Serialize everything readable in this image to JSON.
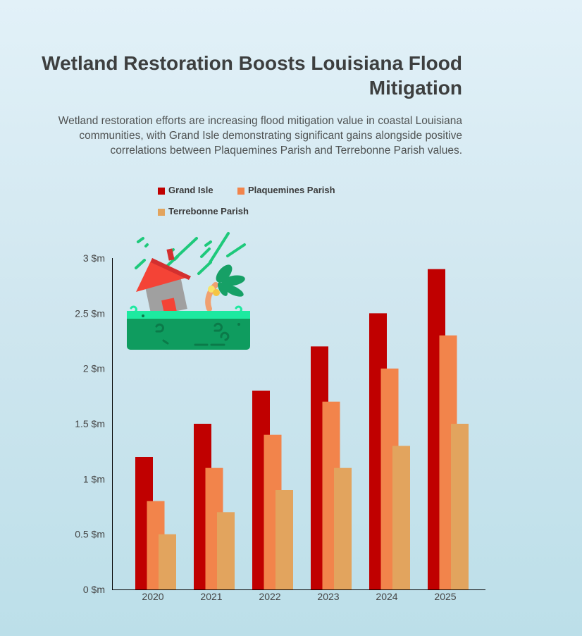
{
  "header": {
    "title": "Wetland Restoration Boosts Louisiana Flood Mitigation",
    "subtitle": "Wetland restoration efforts are increasing flood mitigation value in coastal Louisiana communities, with Grand Isle demonstrating significant gains alongside positive correlations between Plaquemines Parish and Terrebonne Parish values."
  },
  "chart_data": {
    "type": "bar",
    "categories": [
      "2020",
      "2021",
      "2022",
      "2023",
      "2024",
      "2025"
    ],
    "series": [
      {
        "name": "Grand Isle",
        "color": "#c00000",
        "values": [
          1.2,
          1.5,
          1.8,
          2.2,
          2.5,
          2.9
        ]
      },
      {
        "name": "Plaquemines Parish",
        "color": "#f2844b",
        "values": [
          0.8,
          1.1,
          1.4,
          1.7,
          2.0,
          2.3
        ]
      },
      {
        "name": "Terrebonne Parish",
        "color": "#e2a45e",
        "values": [
          0.5,
          0.7,
          0.9,
          1.1,
          1.3,
          1.5
        ]
      }
    ],
    "y_ticks": [
      "0 $m",
      "0.5 $m",
      "1 $m",
      "1.5 $m",
      "2 $m",
      "2.5 $m",
      "3 $m"
    ],
    "ylim": [
      0,
      3
    ],
    "legend_position": "top-left",
    "grid": false,
    "illustration_icon": "flooded-house-icon"
  }
}
